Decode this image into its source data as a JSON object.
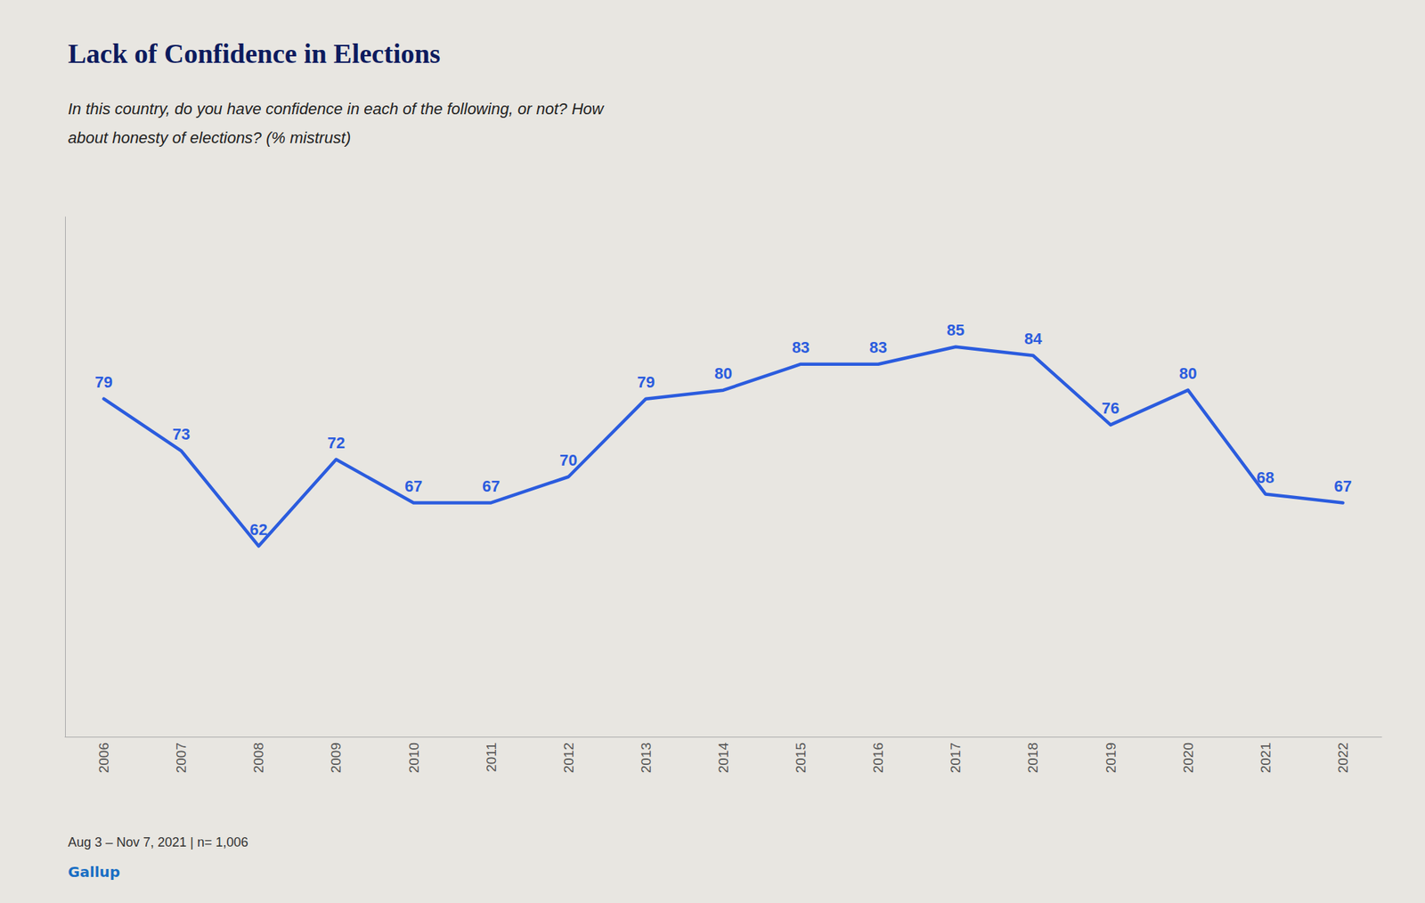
{
  "chart_data": {
    "type": "line",
    "title": "Lack of Confidence in Elections",
    "subtitle": [
      "In this country, do you have confidence in each of the following, or not? How",
      "about honesty of elections? (% mistrust)"
    ],
    "annotations": [
      "Aug 3 – Nov 7, 2021 | n= 1,006",
      "Gallup"
    ],
    "x": [
      2006,
      2007,
      2008,
      2009,
      2010,
      2011,
      2012,
      2013,
      2014,
      2015,
      2016,
      2017,
      2018,
      2019,
      2020,
      2021,
      2022
    ],
    "values": [
      79,
      73,
      62,
      72,
      67,
      67,
      70,
      79,
      80,
      83,
      83,
      85,
      84,
      76,
      80,
      68,
      67
    ],
    "color": "#2b5cde",
    "xlim": [
      2005.5,
      2022.5
    ],
    "xticks": [
      2006,
      2007,
      2008,
      2009,
      2010,
      2011,
      2012,
      2013,
      2014,
      2015,
      2016,
      2017,
      2018,
      2019,
      2020,
      2021,
      2022
    ],
    "ylim": [
      40,
      100
    ],
    "grid": false,
    "data_labels": true,
    "tick_labels": "x"
  }
}
